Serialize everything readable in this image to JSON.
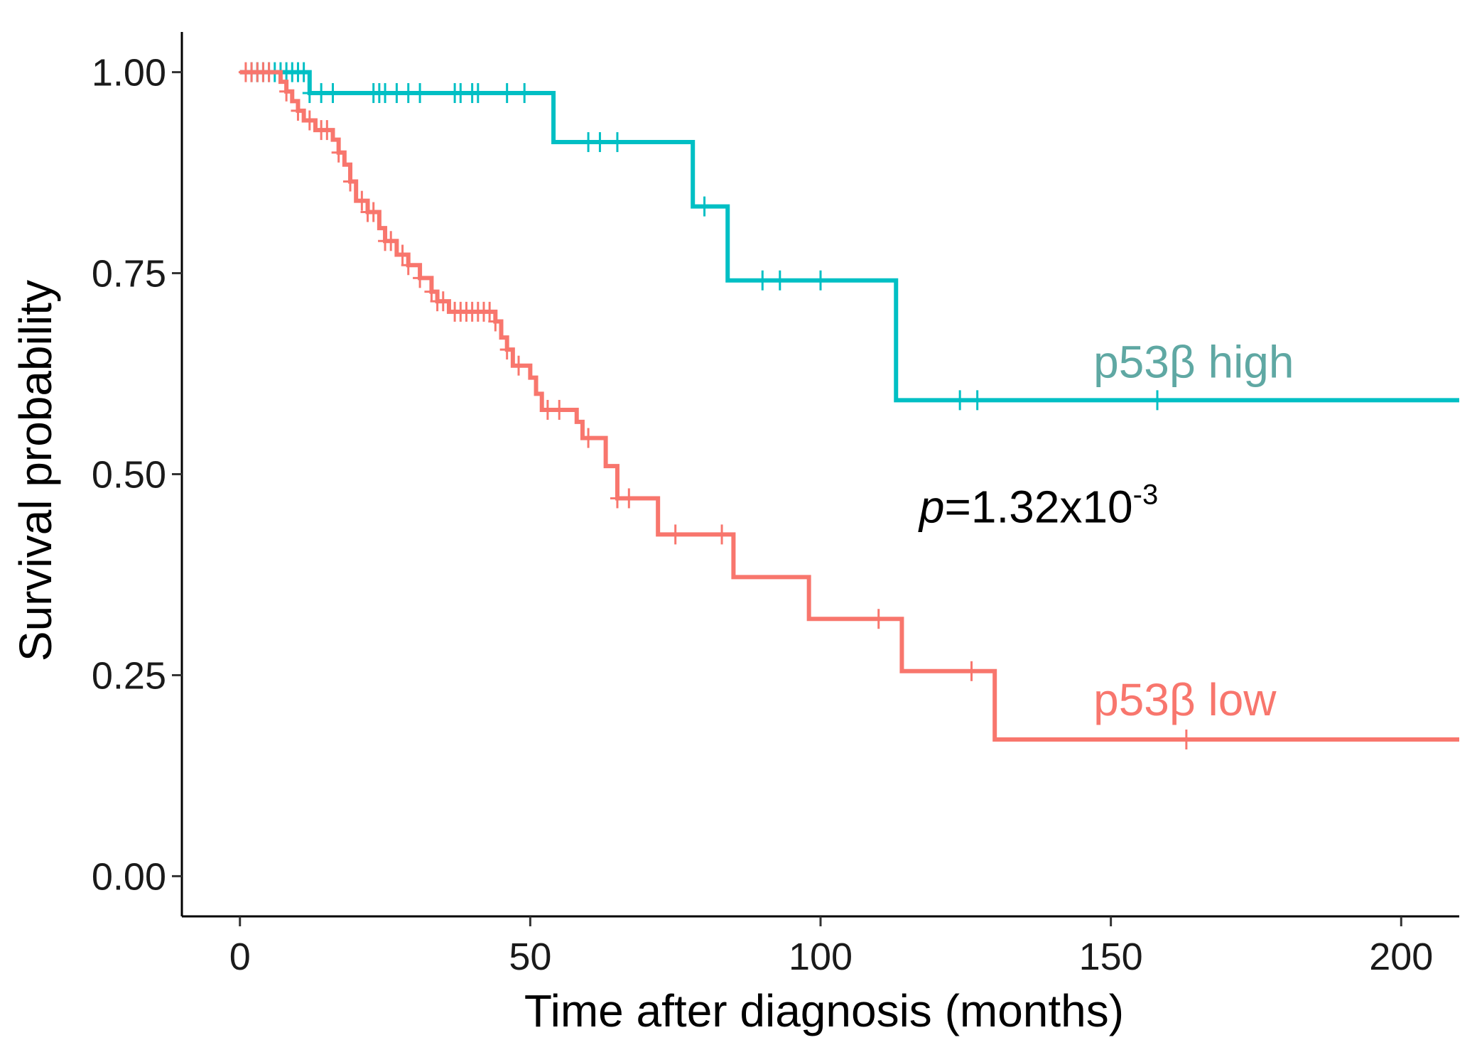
{
  "chart_data": {
    "type": "line",
    "subtype": "kaplan-meier",
    "title": "",
    "xlabel": "Time after diagnosis (months)",
    "ylabel": "Survival probability",
    "xlim": [
      -10,
      210
    ],
    "ylim": [
      -0.05,
      1.05
    ],
    "xticks": [
      0,
      50,
      100,
      150,
      200
    ],
    "xtick_labels": [
      "0",
      "50",
      "100",
      "150",
      "200"
    ],
    "yticks": [
      0,
      0.25,
      0.5,
      0.75,
      1.0
    ],
    "ytick_labels": [
      "0.00",
      "0.25",
      "0.50",
      "0.75",
      "1.00"
    ],
    "grid": false,
    "legend": "none",
    "annotation": {
      "italic": "p",
      "text": "=1.32x10",
      "superscript": "-3",
      "x": 117,
      "y": 0.44
    },
    "series": [
      {
        "name": "p53β high",
        "label": "p53β high",
        "color": "#00BFC4",
        "label_color": "#5fa8a3",
        "label_x": 147,
        "label_y": 0.62,
        "steps": [
          [
            0,
            1.0
          ],
          [
            12,
            0.974
          ],
          [
            54,
            0.913
          ],
          [
            78,
            0.833
          ],
          [
            84,
            0.741
          ],
          [
            113,
            0.592
          ],
          [
            210,
            0.592
          ]
        ],
        "censor_times": [
          2,
          3,
          4,
          5,
          6,
          7,
          8,
          9,
          10,
          11,
          12,
          14,
          16,
          23,
          24,
          25,
          27,
          29,
          31,
          37,
          38,
          40,
          41,
          46,
          49,
          60,
          62,
          65,
          80,
          90,
          93,
          100,
          124,
          127,
          158
        ]
      },
      {
        "name": "p53β low",
        "label": "p53β low",
        "color": "#F8766D",
        "label_color": "#F8766D",
        "label_x": 147,
        "label_y": 0.2,
        "steps": [
          [
            0,
            1.0
          ],
          [
            7,
            0.988
          ],
          [
            8,
            0.976
          ],
          [
            9,
            0.964
          ],
          [
            10,
            0.952
          ],
          [
            11,
            0.94
          ],
          [
            13,
            0.928
          ],
          [
            16,
            0.916
          ],
          [
            17,
            0.9
          ],
          [
            18,
            0.885
          ],
          [
            19,
            0.864
          ],
          [
            20,
            0.84
          ],
          [
            22,
            0.826
          ],
          [
            24,
            0.806
          ],
          [
            25,
            0.79
          ],
          [
            27,
            0.773
          ],
          [
            29,
            0.76
          ],
          [
            31,
            0.744
          ],
          [
            33,
            0.727
          ],
          [
            34,
            0.715
          ],
          [
            36,
            0.702
          ],
          [
            44,
            0.69
          ],
          [
            45,
            0.67
          ],
          [
            46,
            0.655
          ],
          [
            47,
            0.635
          ],
          [
            50,
            0.62
          ],
          [
            51,
            0.6
          ],
          [
            52,
            0.58
          ],
          [
            58,
            0.565
          ],
          [
            59,
            0.545
          ],
          [
            63,
            0.51
          ],
          [
            65,
            0.47
          ],
          [
            72,
            0.425
          ],
          [
            85,
            0.372
          ],
          [
            98,
            0.32
          ],
          [
            114,
            0.255
          ],
          [
            130,
            0.17
          ],
          [
            210,
            0.17
          ]
        ],
        "censor_times": [
          1,
          2,
          3,
          4,
          5,
          8,
          10,
          12,
          14,
          15,
          17,
          19,
          21,
          22,
          23,
          25,
          26,
          28,
          29,
          31,
          33,
          34,
          35,
          37,
          38,
          39,
          40,
          41,
          42,
          43,
          44,
          46,
          48,
          53,
          55,
          60,
          65,
          67,
          75,
          83,
          110,
          126,
          163
        ]
      }
    ]
  }
}
